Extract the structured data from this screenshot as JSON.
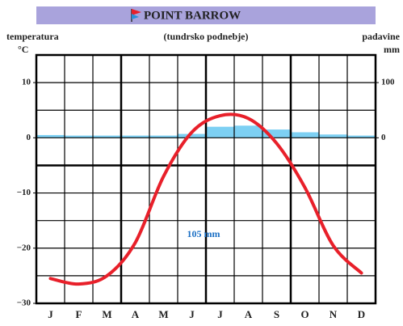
{
  "chart_data": {
    "type": "climograph",
    "title": "POINT BARROW",
    "subtitle": "(tundrsko podnebje)",
    "y_axis_title": "temperatura",
    "y_axis_unit": "°C",
    "y2_axis_title": "padavine",
    "y2_axis_unit": "mm",
    "categories": [
      "J",
      "F",
      "M",
      "A",
      "M",
      "J",
      "J",
      "A",
      "S",
      "O",
      "N",
      "D"
    ],
    "series": [
      {
        "name": "padavine",
        "type": "bar",
        "axis": "y2",
        "color": "#7dd0f3",
        "values": [
          5,
          4,
          4,
          4,
          4,
          7,
          20,
          22,
          15,
          10,
          6,
          4
        ]
      },
      {
        "name": "temperatura",
        "type": "line",
        "color": "#e8202a",
        "values": [
          -25.5,
          -26.5,
          -25,
          -19,
          -7,
          1,
          4,
          3.5,
          -1,
          -9,
          -19.5,
          -24.5
        ]
      }
    ],
    "annotation": "105 mm",
    "annotation_color": "#1a6fc4",
    "ylim": [
      -30,
      15
    ],
    "yticks": [
      10,
      0,
      {
        "value": -10,
        "label": "−10"
      },
      {
        "value": -20,
        "label": "−20"
      },
      {
        "value": -30,
        "label": "−30"
      }
    ],
    "minor_yticks": [
      15,
      5,
      -5,
      -15,
      -25
    ],
    "y2lim": [
      -300,
      150
    ],
    "y2ticks": [
      100,
      0
    ],
    "grid": true
  }
}
